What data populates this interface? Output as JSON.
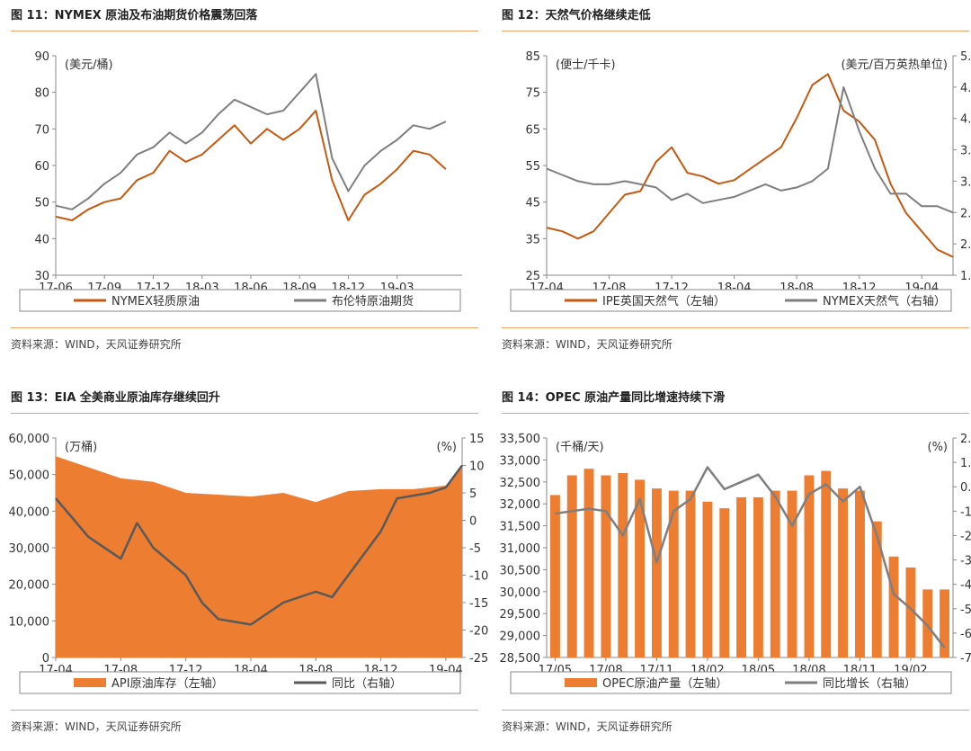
{
  "source_text": "资料来源：WIND，天风证券研究所",
  "chart_data": [
    {
      "id": "fig11",
      "type": "line",
      "title": "图 11：NYMEX 原油及布油期货价格震荡回落",
      "unit_left": "(美元/桶)",
      "x": [
        "17-06",
        "17-09",
        "17-12",
        "18-03",
        "18-06",
        "18-09",
        "18-12",
        "19-03"
      ],
      "xlim": [
        "2017-06",
        "2019-07"
      ],
      "ylim": [
        30,
        90
      ],
      "yticks": [
        30,
        40,
        50,
        60,
        70,
        80,
        90
      ],
      "series": [
        {
          "name": "NYMEX轻质原油",
          "color": "#C65911",
          "points": [
            [
              "2017-06",
              46
            ],
            [
              "2017-07",
              45
            ],
            [
              "2017-08",
              48
            ],
            [
              "2017-09",
              50
            ],
            [
              "2017-10",
              51
            ],
            [
              "2017-11",
              56
            ],
            [
              "2017-12",
              58
            ],
            [
              "2018-01",
              64
            ],
            [
              "2018-02",
              61
            ],
            [
              "2018-03",
              63
            ],
            [
              "2018-04",
              67
            ],
            [
              "2018-05",
              71
            ],
            [
              "2018-06",
              66
            ],
            [
              "2018-07",
              70
            ],
            [
              "2018-08",
              67
            ],
            [
              "2018-09",
              70
            ],
            [
              "2018-10",
              75
            ],
            [
              "2018-11",
              56
            ],
            [
              "2018-12",
              45
            ],
            [
              "2019-01",
              52
            ],
            [
              "2019-02",
              55
            ],
            [
              "2019-03",
              59
            ],
            [
              "2019-04",
              64
            ],
            [
              "2019-05",
              63
            ],
            [
              "2019-06",
              59
            ]
          ]
        },
        {
          "name": "布伦特原油期货",
          "color": "#7F7F7F",
          "points": [
            [
              "2017-06",
              49
            ],
            [
              "2017-07",
              48
            ],
            [
              "2017-08",
              51
            ],
            [
              "2017-09",
              55
            ],
            [
              "2017-10",
              58
            ],
            [
              "2017-11",
              63
            ],
            [
              "2017-12",
              65
            ],
            [
              "2018-01",
              69
            ],
            [
              "2018-02",
              66
            ],
            [
              "2018-03",
              69
            ],
            [
              "2018-04",
              74
            ],
            [
              "2018-05",
              78
            ],
            [
              "2018-06",
              76
            ],
            [
              "2018-07",
              74
            ],
            [
              "2018-08",
              75
            ],
            [
              "2018-09",
              80
            ],
            [
              "2018-10",
              85
            ],
            [
              "2018-11",
              62
            ],
            [
              "2018-12",
              53
            ],
            [
              "2019-01",
              60
            ],
            [
              "2019-02",
              64
            ],
            [
              "2019-03",
              67
            ],
            [
              "2019-04",
              71
            ],
            [
              "2019-05",
              70
            ],
            [
              "2019-06",
              72
            ]
          ]
        }
      ]
    },
    {
      "id": "fig12",
      "type": "line",
      "title": "图 12：天然气价格继续走低",
      "unit_left": "(便士/千卡)",
      "unit_right": "(美元/百万英热单位)",
      "x": [
        "17-04",
        "17-08",
        "17-12",
        "18-04",
        "18-08",
        "18-12",
        "19-04"
      ],
      "xlim": [
        "2017-04",
        "2019-06"
      ],
      "ylim": [
        25,
        85
      ],
      "yticks": [
        25,
        35,
        45,
        55,
        65,
        75,
        85
      ],
      "y2lim": [
        1.5,
        5.0
      ],
      "y2ticks": [
        "1.5",
        "2.0",
        "2.5",
        "3.0",
        "3.5",
        "4.0",
        "4.5",
        "5.0"
      ],
      "series": [
        {
          "name": "IPE英国天然气（左轴）",
          "axis": "left",
          "color": "#C65911",
          "points": [
            [
              "2017-04",
              38
            ],
            [
              "2017-05",
              37
            ],
            [
              "2017-06",
              35
            ],
            [
              "2017-07",
              37
            ],
            [
              "2017-08",
              42
            ],
            [
              "2017-09",
              47
            ],
            [
              "2017-10",
              48
            ],
            [
              "2017-11",
              56
            ],
            [
              "2017-12",
              60
            ],
            [
              "2018-01",
              53
            ],
            [
              "2018-02",
              52
            ],
            [
              "2018-03",
              50
            ],
            [
              "2018-04",
              51
            ],
            [
              "2018-05",
              54
            ],
            [
              "2018-06",
              57
            ],
            [
              "2018-07",
              60
            ],
            [
              "2018-08",
              68
            ],
            [
              "2018-09",
              77
            ],
            [
              "2018-10",
              80
            ],
            [
              "2018-11",
              70
            ],
            [
              "2018-12",
              67
            ],
            [
              "2019-01",
              62
            ],
            [
              "2019-02",
              50
            ],
            [
              "2019-03",
              42
            ],
            [
              "2019-04",
              37
            ],
            [
              "2019-05",
              32
            ],
            [
              "2019-06",
              30
            ]
          ]
        },
        {
          "name": "NYMEX天然气（右轴）",
          "axis": "right",
          "color": "#7F7F7F",
          "points": [
            [
              "2017-04",
              3.2
            ],
            [
              "2017-05",
              3.1
            ],
            [
              "2017-06",
              3.0
            ],
            [
              "2017-07",
              2.95
            ],
            [
              "2017-08",
              2.95
            ],
            [
              "2017-09",
              3.0
            ],
            [
              "2017-10",
              2.95
            ],
            [
              "2017-11",
              2.9
            ],
            [
              "2017-12",
              2.7
            ],
            [
              "2018-01",
              2.8
            ],
            [
              "2018-02",
              2.65
            ],
            [
              "2018-03",
              2.7
            ],
            [
              "2018-04",
              2.75
            ],
            [
              "2018-05",
              2.85
            ],
            [
              "2018-06",
              2.95
            ],
            [
              "2018-07",
              2.85
            ],
            [
              "2018-08",
              2.9
            ],
            [
              "2018-09",
              3.0
            ],
            [
              "2018-10",
              3.2
            ],
            [
              "2018-11",
              4.5
            ],
            [
              "2018-12",
              3.8
            ],
            [
              "2019-01",
              3.2
            ],
            [
              "2019-02",
              2.8
            ],
            [
              "2019-03",
              2.8
            ],
            [
              "2019-04",
              2.6
            ],
            [
              "2019-05",
              2.6
            ],
            [
              "2019-06",
              2.5
            ]
          ]
        }
      ]
    },
    {
      "id": "fig13",
      "type": "area",
      "title": "图 13：EIA 全美商业原油库存继续回升",
      "unit_left": "(万桶)",
      "unit_right": "(%)",
      "x": [
        "17-04",
        "17-08",
        "17-12",
        "18-04",
        "18-08",
        "18-12",
        "19-04"
      ],
      "xlim": [
        "2017-04",
        "2019-05"
      ],
      "ylim": [
        0,
        60000
      ],
      "yticks": [
        "0",
        "10,000",
        "20,000",
        "30,000",
        "40,000",
        "50,000",
        "60,000"
      ],
      "y2lim": [
        -25,
        15
      ],
      "y2ticks": [
        "-25",
        "-20",
        "-15",
        "-10",
        "-5",
        "0",
        "5",
        "10",
        "15"
      ],
      "series": [
        {
          "name": "API原油库存（左轴）",
          "axis": "left",
          "color": "#ED7D31",
          "points": [
            [
              "2017-04",
              55000
            ],
            [
              "2017-06",
              52000
            ],
            [
              "2017-08",
              49000
            ],
            [
              "2017-10",
              48000
            ],
            [
              "2017-12",
              45000
            ],
            [
              "2018-02",
              44500
            ],
            [
              "2018-04",
              44000
            ],
            [
              "2018-06",
              45000
            ],
            [
              "2018-08",
              42500
            ],
            [
              "2018-10",
              45500
            ],
            [
              "2018-12",
              46000
            ],
            [
              "2019-02",
              46000
            ],
            [
              "2019-04",
              47000
            ],
            [
              "2019-05",
              52000
            ]
          ]
        },
        {
          "name": "同比（右轴）",
          "axis": "right",
          "color": "#595959",
          "points": [
            [
              "2017-04",
              4
            ],
            [
              "2017-06",
              -3
            ],
            [
              "2017-08",
              -7
            ],
            [
              "2017-09",
              -0.5
            ],
            [
              "2017-10",
              -5
            ],
            [
              "2017-12",
              -10
            ],
            [
              "2018-01",
              -15
            ],
            [
              "2018-02",
              -18
            ],
            [
              "2018-04",
              -19
            ],
            [
              "2018-06",
              -15
            ],
            [
              "2018-08",
              -13
            ],
            [
              "2018-09",
              -14
            ],
            [
              "2018-10",
              -10
            ],
            [
              "2018-12",
              -2
            ],
            [
              "2019-01",
              4
            ],
            [
              "2019-03",
              5
            ],
            [
              "2019-04",
              6
            ],
            [
              "2019-05",
              10
            ]
          ]
        }
      ]
    },
    {
      "id": "fig14",
      "type": "bar",
      "title": "图 14：OPEC 原油产量同比增速持续下滑",
      "unit_left": "(千桶/天)",
      "unit_right": "(%)",
      "tick_labels": [
        "17/05",
        "17/08",
        "17/11",
        "18/02",
        "18/05",
        "18/08",
        "18/11",
        "19/02"
      ],
      "tick_index": [
        0,
        3,
        6,
        9,
        12,
        15,
        18,
        21
      ],
      "categories": [
        "17/05",
        "17/06",
        "17/07",
        "17/08",
        "17/09",
        "17/10",
        "17/11",
        "17/12",
        "18/01",
        "18/02",
        "18/03",
        "18/04",
        "18/05",
        "18/06",
        "18/07",
        "18/08",
        "18/09",
        "18/10",
        "18/11",
        "18/12",
        "19/01",
        "19/02",
        "19/03",
        "19/04"
      ],
      "ylim": [
        28500,
        33500
      ],
      "yticks": [
        "28,500",
        "29,000",
        "29,500",
        "30,000",
        "30,500",
        "31,000",
        "31,500",
        "32,000",
        "32,500",
        "33,000",
        "33,500"
      ],
      "y2lim": [
        -7.0,
        2.0
      ],
      "y2ticks": [
        "-7.0",
        "-6.0",
        "-5.0",
        "-4.0",
        "-3.0",
        "-2.0",
        "-1.0",
        "0.0",
        "1.0",
        "2.0"
      ],
      "series": [
        {
          "name": "OPEC原油产量（左轴）",
          "axis": "left",
          "color": "#ED7D31",
          "values": [
            32200,
            32650,
            32800,
            32650,
            32700,
            32550,
            32350,
            32300,
            32300,
            32050,
            31900,
            32150,
            32150,
            32300,
            32300,
            32650,
            32750,
            32350,
            32300,
            31600,
            30800,
            30550,
            30050,
            30050
          ]
        },
        {
          "name": "同比增长（右轴）",
          "axis": "right",
          "color": "#7F7F7F",
          "values": [
            -1.1,
            -1.0,
            -0.9,
            -1.0,
            -2.0,
            -0.5,
            -3.1,
            -1.0,
            -0.5,
            0.8,
            -0.1,
            0.2,
            0.5,
            -0.4,
            -1.6,
            -0.3,
            0.1,
            -0.6,
            0.0,
            -2.0,
            -4.4,
            -5.0,
            -5.7,
            -6.6
          ]
        }
      ]
    }
  ]
}
